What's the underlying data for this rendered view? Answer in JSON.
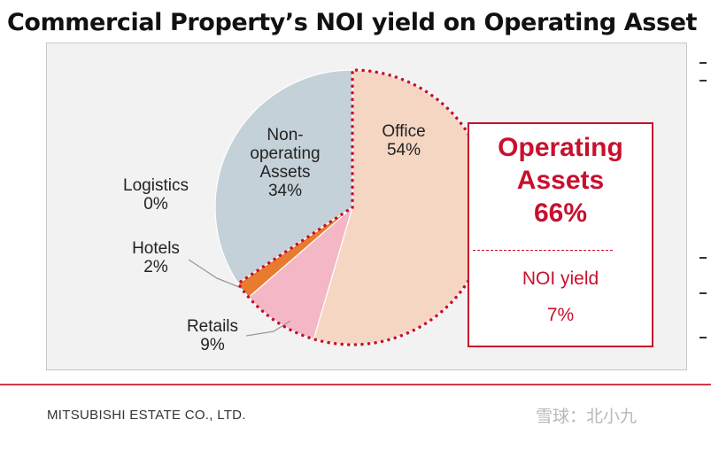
{
  "title": "Commercial Property’s NOI yield on Operating Asset",
  "chart_data": {
    "type": "pie",
    "slices": [
      {
        "label": "Office",
        "value": 54,
        "value_text": "54%",
        "color": "#f5d6c3"
      },
      {
        "label": "Retails",
        "value": 9,
        "value_text": "9%",
        "color": "#f4b7c6"
      },
      {
        "label": "Hotels",
        "value": 2,
        "value_text": "2%",
        "color": "#e87b2f"
      },
      {
        "label": "Logistics",
        "value": 0,
        "value_text": "0%",
        "color": "#e87b2f"
      },
      {
        "label": "Non-operating Assets",
        "value": 34,
        "value_text": "34%",
        "color": "#c5d1d8"
      }
    ],
    "highlight": {
      "slices": [
        "Office",
        "Retails",
        "Hotels",
        "Logistics"
      ],
      "title_lines": [
        "Operating",
        "Assets",
        "66%"
      ],
      "metric_label": "NOI yield",
      "metric_value": "7%",
      "color": "#c8102e"
    }
  },
  "footer": {
    "company": "MITSUBISHI ESTATE CO., LTD.",
    "watermark": "雪球：北小九"
  }
}
